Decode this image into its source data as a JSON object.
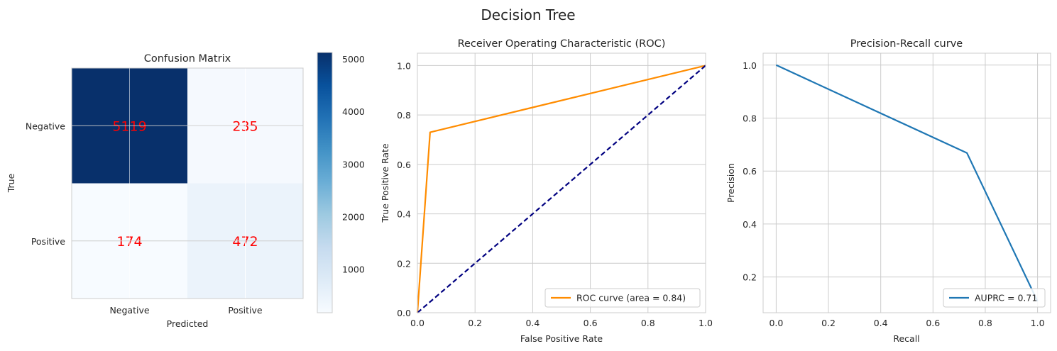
{
  "figure_title": "Decision Tree",
  "chart_data": [
    {
      "type": "heatmap",
      "title": "Confusion Matrix",
      "xlabel": "Predicted",
      "ylabel": "True",
      "x_categories": [
        "Negative",
        "Positive"
      ],
      "y_categories": [
        "Negative",
        "Positive"
      ],
      "values": [
        [
          5119,
          235
        ],
        [
          174,
          472
        ]
      ],
      "colormap": "Blues",
      "annotation_color": "#ff0000",
      "colorbar": {
        "range": [
          174,
          5119
        ],
        "ticks": [
          1000,
          2000,
          3000,
          4000,
          5000
        ],
        "tick_labels": [
          "1000",
          "2000",
          "3000",
          "4000",
          "5000"
        ]
      },
      "grid": true
    },
    {
      "type": "line",
      "title": "Receiver Operating Characteristic (ROC)",
      "xlabel": "False Positive Rate",
      "ylabel": "True Positive Rate",
      "xlim": [
        0,
        1
      ],
      "ylim": [
        0,
        1.05
      ],
      "xticks": [
        "0.0",
        "0.2",
        "0.4",
        "0.6",
        "0.8",
        "1.0"
      ],
      "yticks": [
        "0.0",
        "0.2",
        "0.4",
        "0.6",
        "0.8",
        "1.0"
      ],
      "series": [
        {
          "name": "ROC curve (area = 0.84)",
          "x": [
            0,
            0.044,
            1
          ],
          "y": [
            0,
            0.73,
            1
          ],
          "color": "#ff8c00",
          "style": "solid"
        },
        {
          "x": [
            0,
            1
          ],
          "y": [
            0,
            1
          ],
          "color": "#000080",
          "style": "dashed"
        }
      ],
      "legend": "lower-right",
      "grid": true
    },
    {
      "type": "line",
      "title": "Precision-Recall curve",
      "xlabel": "Recall",
      "ylabel": "Precision",
      "xlim": [
        -0.05,
        1.05
      ],
      "ylim": [
        0.065,
        1.045
      ],
      "xticks": [
        "0.0",
        "0.2",
        "0.4",
        "0.6",
        "0.8",
        "1.0"
      ],
      "yticks": [
        "0.2",
        "0.4",
        "0.6",
        "0.8",
        "1.0"
      ],
      "series": [
        {
          "name": "AUPRC = 0.71",
          "x": [
            0,
            0.73,
            1
          ],
          "y": [
            1,
            0.668,
            0.108
          ],
          "color": "#1f77b4",
          "style": "solid"
        }
      ],
      "legend": "lower-right",
      "grid": true
    }
  ]
}
